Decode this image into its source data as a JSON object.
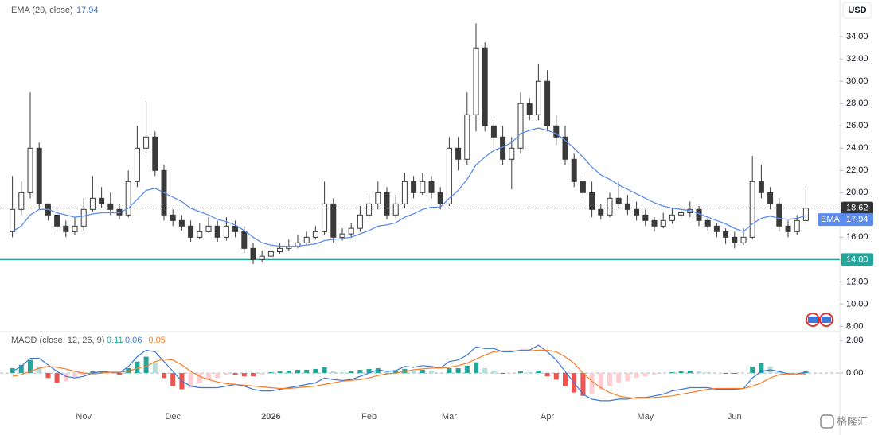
{
  "chart_data": {
    "type": "candlestick",
    "currency": "USD",
    "categories": [
      null,
      null,
      null,
      null,
      null,
      null,
      null,
      null,
      "Nov",
      null,
      null,
      null,
      null,
      null,
      null,
      null,
      null,
      null,
      "Dec",
      null,
      null,
      null,
      null,
      null,
      null,
      null,
      null,
      null,
      null,
      "2026",
      null,
      null,
      null,
      null,
      null,
      null,
      null,
      null,
      null,
      null,
      "Feb",
      null,
      null,
      null,
      null,
      null,
      null,
      null,
      null,
      "Mar",
      null,
      null,
      null,
      null,
      null,
      null,
      null,
      null,
      null,
      null,
      "Apr",
      null,
      null,
      null,
      null,
      null,
      null,
      null,
      null,
      null,
      null,
      "May",
      null,
      null,
      null,
      null,
      null,
      null,
      null,
      null,
      null,
      "Jun",
      null,
      null,
      null,
      null,
      null,
      null,
      null,
      null
    ],
    "open": [
      16.5,
      18.5,
      20,
      24,
      19,
      18,
      17,
      16.5,
      17,
      18.5,
      19.5,
      19,
      18.5,
      18,
      21,
      24,
      25,
      22,
      18,
      17.5,
      17,
      16,
      16.5,
      17,
      16,
      17,
      16.5,
      15,
      14,
      14.3,
      14.7,
      15,
      15.2,
      15.5,
      16,
      16.5,
      19,
      16,
      16.3,
      16.8,
      18,
      19,
      20,
      18,
      19,
      21,
      20,
      21,
      20,
      19,
      24,
      23,
      27,
      33,
      26,
      25,
      23,
      24,
      28,
      27,
      30,
      26,
      25,
      23,
      21,
      20,
      18.5,
      18,
      19.5,
      19,
      18.5,
      18,
      17.5,
      17,
      17.5,
      18,
      18.2,
      18.5,
      17.5,
      17,
      16.5,
      16,
      15.5,
      16,
      21,
      20,
      19,
      17,
      16.5,
      17.5
    ],
    "high": [
      21.5,
      21,
      29,
      24.5,
      19,
      18.5,
      17.5,
      17.8,
      19.5,
      21.5,
      20.5,
      20,
      19,
      22,
      26,
      28.2,
      25.5,
      22.5,
      18.5,
      18,
      17.5,
      17.3,
      17.8,
      17.5,
      17.8,
      17.5,
      17,
      15.5,
      14.8,
      15.3,
      15.5,
      15.8,
      16.2,
      16.5,
      17,
      21,
      19.5,
      16.8,
      17.3,
      18.8,
      19.8,
      21,
      20.5,
      19.8,
      21.8,
      21.5,
      21.8,
      21.5,
      20.5,
      25,
      25,
      29,
      35.2,
      33.5,
      26.5,
      26,
      25,
      29,
      28.5,
      31.6,
      31,
      27,
      26,
      23.5,
      21.5,
      21,
      19,
      20,
      21,
      19.8,
      19.2,
      18.5,
      17.8,
      18.2,
      18.6,
      18.8,
      19.2,
      18.8,
      17.8,
      17.3,
      16.8,
      16.5,
      16.8,
      23.3,
      22.5,
      20.5,
      19.5,
      17.5,
      18,
      20.3
    ],
    "low": [
      16,
      18,
      19.5,
      18.5,
      17.5,
      16.5,
      16,
      16.2,
      16.6,
      18.3,
      18.6,
      18,
      17.6,
      17.8,
      20.5,
      23.5,
      21.5,
      17.5,
      17,
      16.6,
      15.6,
      15.8,
      16.4,
      15.6,
      15.7,
      16,
      14.6,
      13.6,
      13.8,
      14.1,
      14.5,
      14.8,
      15,
      15.4,
      15.8,
      16.2,
      15.5,
      15.7,
      16,
      16.5,
      17.6,
      18.5,
      17.6,
      17.7,
      18.6,
      19.5,
      19.8,
      19.5,
      18.5,
      18.8,
      22,
      22.5,
      25.5,
      25.5,
      24,
      22.5,
      20.3,
      23.5,
      26.5,
      26.5,
      25.5,
      24.3,
      22.5,
      20.5,
      19.5,
      17.8,
      17.6,
      17.8,
      18.6,
      18,
      17.5,
      17,
      16.5,
      16.8,
      17.2,
      17.6,
      17.8,
      17,
      16.6,
      16,
      15.4,
      15,
      15.3,
      15.8,
      19.5,
      18.5,
      16.5,
      16,
      16.2,
      17.3
    ],
    "close": [
      18.5,
      20,
      24,
      19,
      18,
      17,
      16.5,
      17,
      18.5,
      19.5,
      19,
      18.5,
      18,
      21,
      24,
      25,
      22,
      18,
      17.5,
      17,
      16,
      16.5,
      17,
      16,
      17,
      16.5,
      15,
      14,
      14.3,
      14.7,
      15,
      15.2,
      15.5,
      16,
      16.5,
      19,
      16,
      16.3,
      16.8,
      18,
      19,
      20,
      18,
      19,
      21,
      20,
      21,
      20,
      19,
      24,
      23,
      27,
      33,
      26,
      25,
      23,
      24,
      28,
      27,
      30,
      26,
      25,
      23,
      21,
      20,
      18.5,
      18,
      19.5,
      19,
      18.5,
      18,
      17.5,
      17,
      17.5,
      18,
      18.2,
      18.5,
      17.5,
      17,
      16.5,
      16,
      15.5,
      16,
      21,
      20,
      19,
      17,
      16.5,
      17.5,
      18.62
    ],
    "up_color": "#ffffff",
    "down_color": "#3a3a3a",
    "ylim": [
      7.6,
      37.3
    ],
    "yticks": [
      {
        "value": 34,
        "label": "34.00"
      },
      {
        "value": 32,
        "label": "32.00"
      },
      {
        "value": 30,
        "label": "30.00"
      },
      {
        "value": 28,
        "label": "28.00"
      },
      {
        "value": 26,
        "label": "26.00"
      },
      {
        "value": 24,
        "label": "24.00"
      },
      {
        "value": 22,
        "label": "22.00"
      },
      {
        "value": 20,
        "label": "20.00"
      },
      {
        "value": 16,
        "label": "16.00"
      },
      {
        "value": 12,
        "label": "12.00"
      },
      {
        "value": 10,
        "label": "10.00"
      },
      {
        "value": 8,
        "label": "8.00"
      }
    ],
    "hline": {
      "value": 14,
      "label": "14.00",
      "color": "#26a69a"
    },
    "ema": {
      "name": "EMA (20, close)",
      "tag": "EMA",
      "color": "#5b8def",
      "values": [
        16.5,
        17,
        18,
        18.5,
        18.5,
        18.2,
        18,
        17.8,
        17.9,
        18.1,
        18.2,
        18.2,
        18.2,
        18.6,
        19.4,
        20.2,
        20.4,
        20,
        19.6,
        19.2,
        18.6,
        18.3,
        18,
        17.6,
        17.4,
        17.1,
        16.6,
        16,
        15.5,
        15.3,
        15.2,
        15.2,
        15.2,
        15.3,
        15.4,
        15.7,
        15.8,
        15.9,
        16,
        16.3,
        16.6,
        17,
        17.1,
        17.3,
        17.8,
        18.1,
        18.5,
        18.7,
        18.7,
        19.5,
        20.2,
        21.2,
        22.5,
        23.2,
        23.8,
        24.1,
        24.5,
        25.3,
        25.6,
        25.8,
        25.6,
        25.3,
        24.7,
        24,
        23.2,
        22.3,
        21.6,
        21.2,
        20.7,
        20.3,
        19.9,
        19.5,
        19.1,
        18.8,
        18.6,
        18.5,
        18.4,
        18.1,
        17.8,
        17.5,
        17.2,
        16.8,
        16.5,
        17.2,
        17.7,
        17.9,
        17.7,
        17.6,
        17.7,
        17.94
      ]
    },
    "macd": {
      "title": "MACD (close, 12, 26, 9)",
      "ylim": [
        -2.24,
        2.49
      ],
      "yticks": [
        {
          "value": 2,
          "label": "2.00"
        },
        {
          "value": 0,
          "label": "0.00"
        }
      ],
      "histogram": {
        "color": "#26a69a",
        "up_light": "#b2dfdb",
        "down_color": "#ef5350",
        "down_light": "#ffcdd2",
        "values": [
          0.3,
          0.5,
          0.8,
          0.4,
          -0.3,
          -0.6,
          -0.5,
          -0.3,
          -0.1,
          0.1,
          0.1,
          0,
          -0.1,
          0.3,
          0.7,
          1,
          0.6,
          -0.3,
          -0.8,
          -1,
          -0.9,
          -0.6,
          -0.4,
          -0.3,
          -0.1,
          -0.1,
          -0.2,
          -0.2,
          -0.1,
          0.05,
          0.1,
          0.15,
          0.2,
          0.2,
          0.25,
          0.35,
          0.1,
          0.05,
          0.1,
          0.2,
          0.25,
          0.3,
          0.1,
          0.15,
          0.25,
          0.15,
          0.2,
          0.15,
          0,
          0.3,
          0.3,
          0.45,
          0.65,
          0.3,
          0.15,
          -0.05,
          0,
          0.1,
          0.05,
          0.15,
          -0.2,
          -0.4,
          -0.8,
          -1.2,
          -1.4,
          -1.3,
          -1,
          -0.8,
          -0.6,
          -0.5,
          -0.3,
          -0.2,
          -0.1,
          0,
          0.05,
          0.1,
          0.15,
          0.1,
          0.05,
          0,
          -0.05,
          -0.05,
          0,
          0.4,
          0.6,
          0.4,
          0.1,
          -0.05,
          0,
          0.11
        ]
      },
      "macd": {
        "color": "#3c78d8",
        "values": [
          0.1,
          0.4,
          0.9,
          0.9,
          0.5,
          0.1,
          -0.2,
          -0.3,
          -0.2,
          0,
          0.1,
          0.05,
          0,
          0.4,
          1,
          1.4,
          1.3,
          0.7,
          0.1,
          -0.5,
          -0.8,
          -0.9,
          -0.9,
          -0.9,
          -0.8,
          -0.7,
          -0.8,
          -1,
          -1.1,
          -1.1,
          -1,
          -0.9,
          -0.8,
          -0.7,
          -0.6,
          -0.3,
          -0.4,
          -0.45,
          -0.4,
          -0.2,
          0,
          0.2,
          0.1,
          0.15,
          0.4,
          0.35,
          0.45,
          0.4,
          0.3,
          0.7,
          0.8,
          1.1,
          1.6,
          1.5,
          1.5,
          1.3,
          1.3,
          1.4,
          1.4,
          1.7,
          1.3,
          0.8,
          0.1,
          -0.6,
          -1.3,
          -1.6,
          -1.7,
          -1.7,
          -1.6,
          -1.6,
          -1.5,
          -1.5,
          -1.4,
          -1.3,
          -1.1,
          -1,
          -0.9,
          -0.9,
          -0.9,
          -1,
          -1,
          -1,
          -0.95,
          -0.3,
          0.1,
          0.2,
          0.1,
          -0.05,
          -0.05,
          0.06
        ]
      },
      "signal": {
        "color": "#f57c2a",
        "latest_label": "−0.05",
        "values": [
          -0.2,
          -0.1,
          0.1,
          0.3,
          0.4,
          0.35,
          0.25,
          0.1,
          0,
          -0.05,
          0,
          0.05,
          0.05,
          0.1,
          0.3,
          0.4,
          0.7,
          0.85,
          0.8,
          0.5,
          0.1,
          -0.2,
          -0.4,
          -0.55,
          -0.65,
          -0.7,
          -0.75,
          -0.8,
          -0.85,
          -0.9,
          -0.95,
          -0.95,
          -0.9,
          -0.85,
          -0.8,
          -0.7,
          -0.6,
          -0.5,
          -0.45,
          -0.4,
          -0.3,
          -0.15,
          -0.05,
          0,
          0.1,
          0.2,
          0.25,
          0.3,
          0.3,
          0.35,
          0.45,
          0.6,
          0.85,
          1.1,
          1.3,
          1.35,
          1.35,
          1.35,
          1.35,
          1.4,
          1.4,
          1.3,
          1,
          0.6,
          0,
          -0.5,
          -0.9,
          -1.2,
          -1.4,
          -1.5,
          -1.55,
          -1.55,
          -1.5,
          -1.45,
          -1.4,
          -1.3,
          -1.2,
          -1.1,
          -1,
          -0.95,
          -0.95,
          -0.95,
          -0.95,
          -0.8,
          -0.6,
          -0.3,
          -0.1,
          -0.05,
          -0.05,
          -0.05
        ]
      }
    }
  },
  "watermark": "格隆汇"
}
